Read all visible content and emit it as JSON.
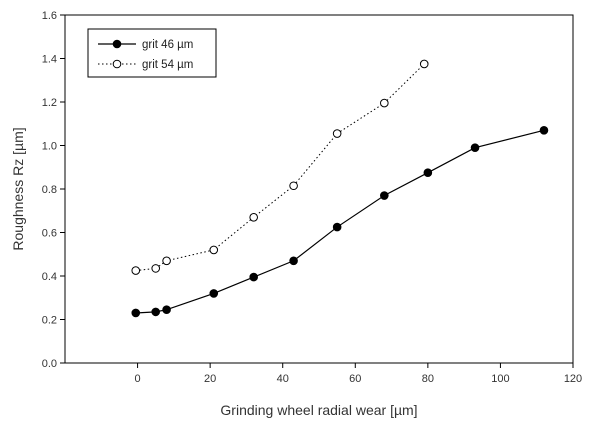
{
  "chart_data": {
    "type": "line",
    "xlabel": "Grinding wheel radial wear [µm]",
    "ylabel": "Roughness Rz [µm]",
    "xlim": [
      -20,
      120
    ],
    "ylim": [
      0.0,
      1.6
    ],
    "x_ticks": [
      0,
      20,
      40,
      60,
      80,
      100,
      120
    ],
    "y_ticks": [
      0.0,
      0.2,
      0.4,
      0.6,
      0.8,
      1.0,
      1.2,
      1.4,
      1.6
    ],
    "y_tick_labels": [
      "0.0",
      "0.2",
      "0.4",
      "0.6",
      "0.8",
      "1.0",
      "1.2",
      "1.4",
      "1.6"
    ],
    "grid": false,
    "legend_position": "top-left",
    "series": [
      {
        "name": "grit 46 µm",
        "marker": "filled-circle",
        "line_style": "solid",
        "color": "#000000",
        "x": [
          -0.5,
          5,
          8,
          21,
          32,
          43,
          55,
          68,
          80,
          93,
          112
        ],
        "y": [
          0.23,
          0.235,
          0.245,
          0.32,
          0.395,
          0.47,
          0.625,
          0.77,
          0.875,
          0.99,
          1.07
        ]
      },
      {
        "name": "grit 54 µm",
        "marker": "open-circle",
        "line_style": "dotted",
        "color": "#000000",
        "x": [
          -0.5,
          5,
          8,
          21,
          32,
          43,
          55,
          68,
          79
        ],
        "y": [
          0.425,
          0.435,
          0.47,
          0.52,
          0.67,
          0.815,
          1.055,
          1.195,
          1.375
        ]
      }
    ]
  }
}
